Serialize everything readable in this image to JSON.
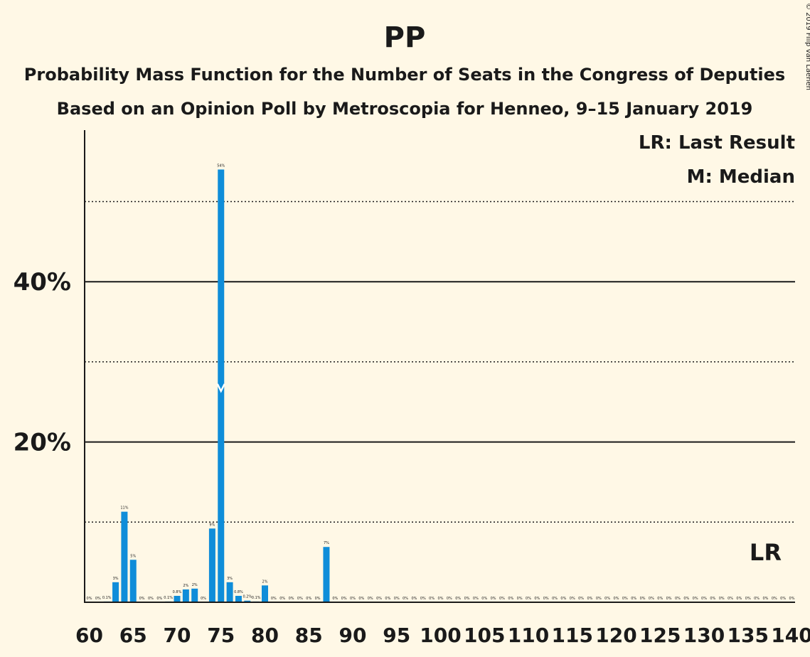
{
  "title": "PP",
  "subtitle1": "Probability Mass Function for the Number of Seats in the Congress of Deputies",
  "subtitle2": "Based on an Opinion Poll by Metroscopia for Henneo, 9–15 January 2019",
  "copyright": "© 2019 Filip van Laenen",
  "legend": {
    "lr": "LR: Last Result",
    "median": "M: Median"
  },
  "colors": {
    "background": "#fff8e6",
    "bar": "#0f8dd9",
    "text": "#1a1a1a"
  },
  "chart_data": {
    "type": "bar",
    "title": "PP",
    "xlabel": "",
    "ylabel": "",
    "xlim": [
      60,
      140
    ],
    "ylim": [
      0,
      60
    ],
    "y_ticks": [
      {
        "value": 10,
        "label": "",
        "style": "dotted"
      },
      {
        "value": 20,
        "label": "20%",
        "style": "solid"
      },
      {
        "value": 30,
        "label": "",
        "style": "dotted"
      },
      {
        "value": 40,
        "label": "40%",
        "style": "solid"
      },
      {
        "value": 50,
        "label": "",
        "style": "dotted"
      }
    ],
    "x_tick_labels": [
      "60",
      "65",
      "70",
      "75",
      "80",
      "85",
      "90",
      "95",
      "100",
      "105",
      "110",
      "115",
      "120",
      "125",
      "130",
      "135",
      "140"
    ],
    "bars": [
      {
        "x": 60,
        "value": 0,
        "label": "0%"
      },
      {
        "x": 61,
        "value": 0,
        "label": "0%"
      },
      {
        "x": 62,
        "value": 0.1,
        "label": "0.1%"
      },
      {
        "x": 63,
        "value": 2.5,
        "label": "3%"
      },
      {
        "x": 64,
        "value": 11.3,
        "label": "11%"
      },
      {
        "x": 65,
        "value": 5.3,
        "label": "5%"
      },
      {
        "x": 66,
        "value": 0,
        "label": "0%"
      },
      {
        "x": 67,
        "value": 0,
        "label": "0%"
      },
      {
        "x": 68,
        "value": 0,
        "label": "0%"
      },
      {
        "x": 69,
        "value": 0.1,
        "label": "0.1%"
      },
      {
        "x": 70,
        "value": 0.8,
        "label": "0.8%"
      },
      {
        "x": 71,
        "value": 1.6,
        "label": "2%"
      },
      {
        "x": 72,
        "value": 1.7,
        "label": "2%"
      },
      {
        "x": 73,
        "value": 0,
        "label": "0%"
      },
      {
        "x": 74,
        "value": 9.2,
        "label": "9%"
      },
      {
        "x": 75,
        "value": 54.0,
        "label": "54%"
      },
      {
        "x": 76,
        "value": 2.5,
        "label": "3%"
      },
      {
        "x": 77,
        "value": 0.8,
        "label": "0.8%"
      },
      {
        "x": 78,
        "value": 0.2,
        "label": "0.2%"
      },
      {
        "x": 79,
        "value": 0.1,
        "label": "0.1%"
      },
      {
        "x": 80,
        "value": 2.1,
        "label": "2%"
      },
      {
        "x": 81,
        "value": 0,
        "label": "0%"
      },
      {
        "x": 82,
        "value": 0,
        "label": "0%"
      },
      {
        "x": 83,
        "value": 0,
        "label": "0%"
      },
      {
        "x": 84,
        "value": 0,
        "label": "0%"
      },
      {
        "x": 85,
        "value": 0,
        "label": "0%"
      },
      {
        "x": 86,
        "value": 0,
        "label": "0%"
      },
      {
        "x": 87,
        "value": 6.9,
        "label": "7%"
      },
      {
        "x": 88,
        "value": 0,
        "label": "0%"
      },
      {
        "x": 89,
        "value": 0,
        "label": "0%"
      },
      {
        "x": 90,
        "value": 0,
        "label": "0%"
      },
      {
        "x": 91,
        "value": 0,
        "label": "0%"
      },
      {
        "x": 92,
        "value": 0,
        "label": "0%"
      },
      {
        "x": 93,
        "value": 0,
        "label": "0%"
      },
      {
        "x": 94,
        "value": 0,
        "label": "0%"
      },
      {
        "x": 95,
        "value": 0,
        "label": "0%"
      },
      {
        "x": 96,
        "value": 0,
        "label": "0%"
      },
      {
        "x": 97,
        "value": 0,
        "label": "0%"
      },
      {
        "x": 98,
        "value": 0,
        "label": "0%"
      },
      {
        "x": 99,
        "value": 0,
        "label": "0%"
      },
      {
        "x": 100,
        "value": 0,
        "label": "0%"
      },
      {
        "x": 101,
        "value": 0,
        "label": "0%"
      },
      {
        "x": 102,
        "value": 0,
        "label": "0%"
      },
      {
        "x": 103,
        "value": 0,
        "label": "0%"
      },
      {
        "x": 104,
        "value": 0,
        "label": "0%"
      },
      {
        "x": 105,
        "value": 0,
        "label": "0%"
      },
      {
        "x": 106,
        "value": 0,
        "label": "0%"
      },
      {
        "x": 107,
        "value": 0,
        "label": "0%"
      },
      {
        "x": 108,
        "value": 0,
        "label": "0%"
      },
      {
        "x": 109,
        "value": 0,
        "label": "0%"
      },
      {
        "x": 110,
        "value": 0,
        "label": "0%"
      },
      {
        "x": 111,
        "value": 0,
        "label": "0%"
      },
      {
        "x": 112,
        "value": 0,
        "label": "0%"
      },
      {
        "x": 113,
        "value": 0,
        "label": "0%"
      },
      {
        "x": 114,
        "value": 0,
        "label": "0%"
      },
      {
        "x": 115,
        "value": 0,
        "label": "0%"
      },
      {
        "x": 116,
        "value": 0,
        "label": "0%"
      },
      {
        "x": 117,
        "value": 0,
        "label": "0%"
      },
      {
        "x": 118,
        "value": 0,
        "label": "0%"
      },
      {
        "x": 119,
        "value": 0,
        "label": "0%"
      },
      {
        "x": 120,
        "value": 0,
        "label": "0%"
      },
      {
        "x": 121,
        "value": 0,
        "label": "0%"
      },
      {
        "x": 122,
        "value": 0,
        "label": "0%"
      },
      {
        "x": 123,
        "value": 0,
        "label": "0%"
      },
      {
        "x": 124,
        "value": 0,
        "label": "0%"
      },
      {
        "x": 125,
        "value": 0,
        "label": "0%"
      },
      {
        "x": 126,
        "value": 0,
        "label": "0%"
      },
      {
        "x": 127,
        "value": 0,
        "label": "0%"
      },
      {
        "x": 128,
        "value": 0,
        "label": "0%"
      },
      {
        "x": 129,
        "value": 0,
        "label": "0%"
      },
      {
        "x": 130,
        "value": 0,
        "label": "0%"
      },
      {
        "x": 131,
        "value": 0,
        "label": "0%"
      },
      {
        "x": 132,
        "value": 0,
        "label": "0%"
      },
      {
        "x": 133,
        "value": 0,
        "label": "0%"
      },
      {
        "x": 134,
        "value": 0,
        "label": "0%"
      },
      {
        "x": 135,
        "value": 0,
        "label": "0%"
      },
      {
        "x": 136,
        "value": 0,
        "label": "0%"
      },
      {
        "x": 137,
        "value": 0,
        "label": "0%"
      },
      {
        "x": 138,
        "value": 0,
        "label": "0%"
      },
      {
        "x": 139,
        "value": 0,
        "label": "0%"
      },
      {
        "x": 140,
        "value": 0,
        "label": "0%"
      }
    ],
    "median": {
      "x": 75,
      "label": "M"
    },
    "last_result": {
      "x": 137,
      "label": "LR"
    }
  }
}
